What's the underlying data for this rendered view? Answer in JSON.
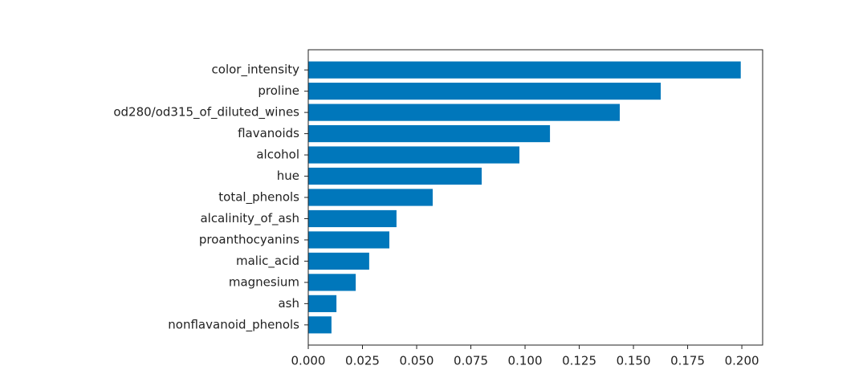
{
  "chart_data": {
    "type": "barh",
    "categories": [
      "color_intensity",
      "proline",
      "od280/od315_of_diluted_wines",
      "flavanoids",
      "alcohol",
      "hue",
      "total_phenols",
      "alcalinity_of_ash",
      "proanthocyanins",
      "malic_acid",
      "magnesium",
      "ash",
      "nonflavanoid_phenols"
    ],
    "values": [
      0.1995,
      0.1626,
      0.1437,
      0.1115,
      0.0974,
      0.08,
      0.0574,
      0.0407,
      0.0374,
      0.0281,
      0.0219,
      0.013,
      0.0107
    ],
    "color": "#0077bb",
    "xlim": [
      0,
      0.2096
    ],
    "xticks": [
      {
        "value": 0,
        "label": "0.000"
      },
      {
        "value": 0.025,
        "label": "0.025"
      },
      {
        "value": 0.05,
        "label": "0.050"
      },
      {
        "value": 0.075,
        "label": "0.075"
      },
      {
        "value": 0.1,
        "label": "0.100"
      },
      {
        "value": 0.125,
        "label": "0.125"
      },
      {
        "value": 0.15,
        "label": "0.150"
      },
      {
        "value": 0.175,
        "label": "0.175"
      },
      {
        "value": 0.2,
        "label": "0.200"
      }
    ],
    "grid": false
  }
}
